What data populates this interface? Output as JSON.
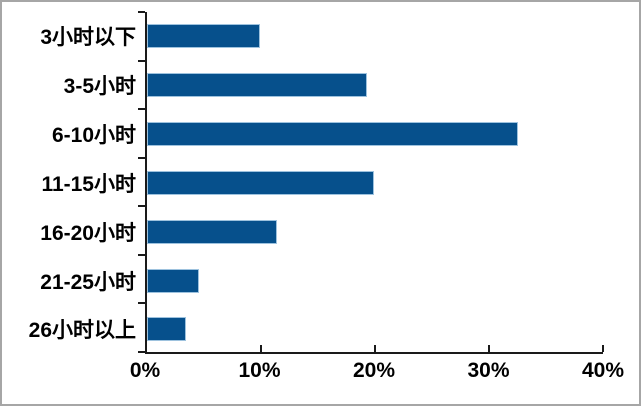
{
  "chart_data": {
    "type": "bar",
    "orientation": "horizontal",
    "title": "",
    "xlabel": "",
    "ylabel": "",
    "categories": [
      "3小时以下",
      "3-5小时",
      "6-10小时",
      "11-15小时",
      "16-20小时",
      "21-25小时",
      "26小时以上"
    ],
    "values": [
      9.9,
      19.3,
      32.5,
      19.9,
      11.4,
      4.6,
      3.4
    ],
    "unit": "%",
    "xlim": [
      0,
      40
    ],
    "x_tick_labels": [
      "0%",
      "10%",
      "20%",
      "30%",
      "40%"
    ],
    "grid": false,
    "legend": false,
    "tick_style": "x-ticks inside, y-ticks outside",
    "bar_color": "#06508C",
    "bar_edge_color": "#9dc2de",
    "axis_color": "#1a1a1a",
    "frame_color": "#a6a6a6",
    "background_color": "#ffffff"
  }
}
